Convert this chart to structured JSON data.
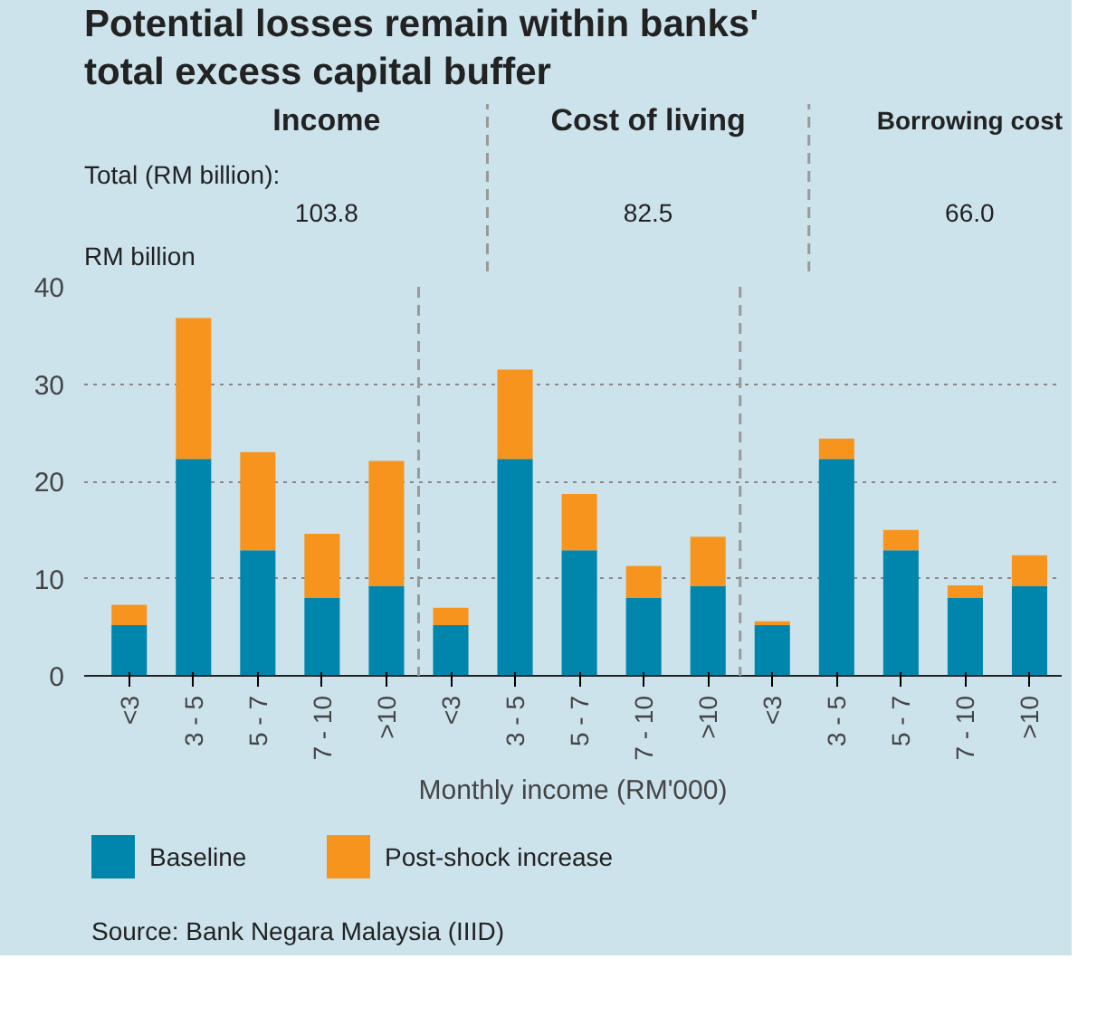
{
  "chart_data": {
    "type": "bar",
    "title": "Potential losses remain within banks' total excess capital buffer",
    "xlabel": "Monthly income (RM'000)",
    "ylabel": "RM billion",
    "categories": [
      "<3",
      "3 - 5",
      "5 - 7",
      "7 - 10",
      ">10",
      "<3",
      "3 - 5",
      "5 - 7",
      "7 - 10",
      ">10",
      "<3",
      "3 - 5",
      "5 - 7",
      "7 - 10",
      ">10"
    ],
    "series": [
      {
        "name": "Baseline",
        "color": "#0086ad",
        "values": [
          5.2,
          22.3,
          12.9,
          8.0,
          9.2,
          5.2,
          22.3,
          12.9,
          8.0,
          9.2,
          5.2,
          22.3,
          12.9,
          8.0,
          9.2
        ]
      },
      {
        "name": "Post-shock increase",
        "color": "#f7941d",
        "values": [
          2.1,
          14.5,
          10.1,
          6.6,
          12.9,
          1.8,
          9.2,
          5.8,
          3.3,
          5.1,
          0.4,
          2.1,
          2.1,
          1.3,
          3.2
        ]
      }
    ],
    "stacked": true,
    "ylim": [
      0,
      40
    ],
    "yticks": [
      0,
      10,
      20,
      30,
      40
    ],
    "grid": "y",
    "legend": "bottom",
    "annotations": [
      "Income",
      "Cost of living",
      "Borrowing cost",
      "Total (RM billion):",
      "103.8",
      "82.5",
      "66.0",
      "Source: Bank Negara Malaysia (IIID)"
    ]
  }
}
